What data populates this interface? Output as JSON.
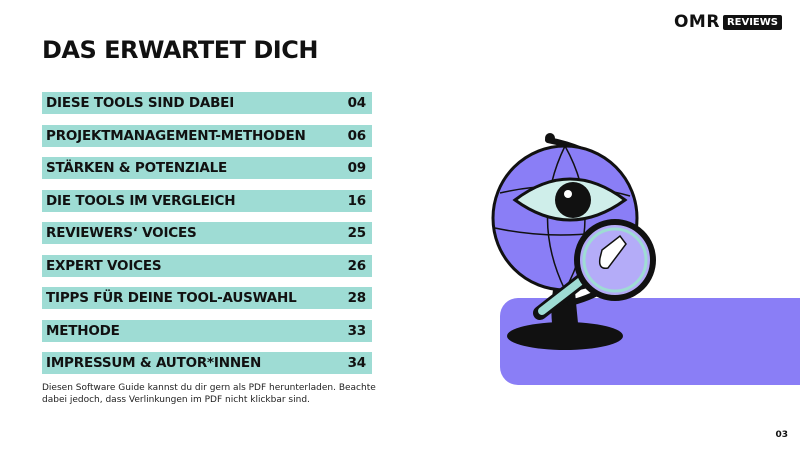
{
  "brand": {
    "logo_om": "OMR",
    "logo_reviews": "REVIEWS"
  },
  "title": "DAS ERWARTET DICH",
  "toc": [
    {
      "label": "DIESE TOOLS SIND DABEI",
      "page": "04"
    },
    {
      "label": "PROJEKTMANAGEMENT-METHODEN",
      "page": "06"
    },
    {
      "label": "STÄRKEN & POTENZIALE",
      "page": "09"
    },
    {
      "label": "DIE TOOLS IM VERGLEICH",
      "page": "16"
    },
    {
      "label": "REVIEWERS‘ VOICES",
      "page": "25"
    },
    {
      "label": "EXPERT VOICES",
      "page": "26"
    },
    {
      "label": "TIPPS FÜR DEINE TOOL-AUSWAHL",
      "page": "28"
    },
    {
      "label": "METHODE",
      "page": "33"
    },
    {
      "label": "IMPRESSUM & AUTOR*INNEN",
      "page": "34"
    }
  ],
  "note": "Diesen Software Guide kannst du dir gern als PDF herunterladen. Beachte dabei jedoch, dass Verlinkungen im PDF nicht klickbar sind.",
  "page_number": "03",
  "colors": {
    "accent": "#9edcd4",
    "purple": "#8a7ef6",
    "ink": "#111111"
  }
}
